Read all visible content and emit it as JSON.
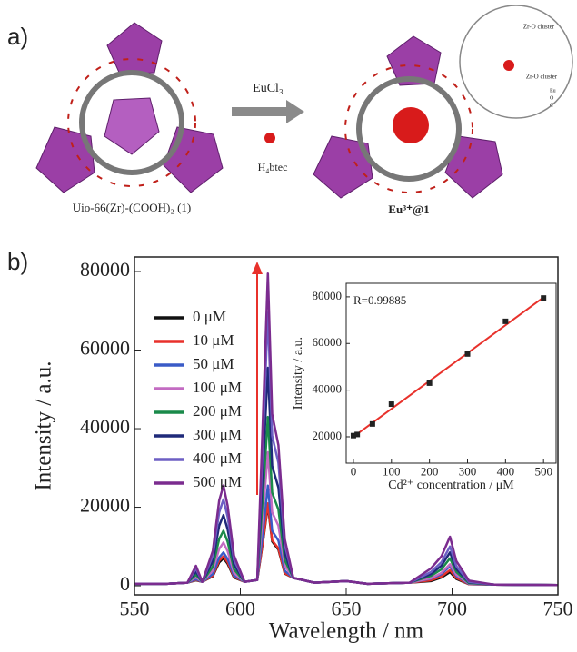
{
  "panel_a": {
    "label": "a)",
    "left_caption": "Uio-66(Zr)-(COOH)₂ (1)",
    "right_caption": "Eu³⁺@1",
    "reagent": "EuCl₃",
    "linker": "H₄btec",
    "zoom": {
      "cluster_top": "Zr-O cluster",
      "cluster_bottom": "Zr-O cluster",
      "key": [
        "Eu",
        "O",
        "C"
      ]
    }
  },
  "panel_b": {
    "label": "b)"
  },
  "chart_data": [
    {
      "type": "line",
      "xlabel": "Wavelength / nm",
      "ylabel": "Intensity / a.u.",
      "x": [
        550,
        565,
        575,
        579,
        582,
        587,
        590,
        592,
        594,
        597,
        602,
        608,
        611,
        613,
        615,
        618,
        621,
        625,
        635,
        650,
        660,
        680,
        690,
        695,
        699,
        702,
        708,
        720,
        750
      ],
      "xlim": [
        550,
        750
      ],
      "xticks": [
        550,
        600,
        650,
        700,
        750
      ],
      "ylim": [
        -2300,
        83700
      ],
      "yticks": [
        0,
        20000,
        40000,
        60000,
        80000
      ],
      "legend": "upper left",
      "series": [
        {
          "name": "0 μM",
          "color": "#111111",
          "values": [
            500,
            500,
            800,
            1400,
            1000,
            2450,
            5950,
            7000,
            5600,
            2100,
            1000,
            1500,
            12300,
            20500,
            11300,
            9200,
            3100,
            2000,
            800,
            1200,
            500,
            800,
            1200,
            2100,
            3500,
            1750,
            400,
            300,
            200
          ]
        },
        {
          "name": "10 μM",
          "color": "#e8312b",
          "values": [
            500,
            500,
            800,
            1500,
            1000,
            2600,
            6400,
            7500,
            6000,
            2300,
            1000,
            1500,
            12600,
            21000,
            11600,
            9500,
            3200,
            2000,
            800,
            1200,
            500,
            800,
            1400,
            2400,
            4000,
            2000,
            400,
            300,
            200
          ]
        },
        {
          "name": "50 μM",
          "color": "#3a5bc7",
          "values": [
            500,
            500,
            800,
            1700,
            1000,
            3000,
            7200,
            8500,
            6800,
            2600,
            1000,
            1500,
            15300,
            25500,
            14000,
            11500,
            3800,
            2000,
            800,
            1200,
            500,
            800,
            1800,
            3000,
            5000,
            2500,
            500,
            300,
            200
          ]
        },
        {
          "name": "100 μM",
          "color": "#c36bc2",
          "values": [
            500,
            500,
            800,
            2200,
            1000,
            3900,
            9400,
            11000,
            8800,
            3300,
            1000,
            1500,
            20400,
            34000,
            18700,
            15300,
            5100,
            2000,
            800,
            1200,
            500,
            800,
            1900,
            3300,
            5500,
            2800,
            600,
            300,
            200
          ]
        },
        {
          "name": "200 μM",
          "color": "#1a8a4a",
          "values": [
            500,
            500,
            800,
            2800,
            1000,
            4900,
            11900,
            14000,
            11200,
            4200,
            1000,
            1500,
            25800,
            43000,
            23700,
            19400,
            6500,
            2000,
            800,
            1200,
            500,
            800,
            2500,
            4200,
            7000,
            3500,
            700,
            300,
            200
          ]
        },
        {
          "name": "300 μM",
          "color": "#1f2a7a",
          "values": [
            500,
            500,
            800,
            3600,
            1000,
            6300,
            15300,
            18000,
            14400,
            5400,
            1000,
            1500,
            33300,
            55500,
            30500,
            25000,
            8300,
            2000,
            800,
            1200,
            500,
            800,
            3000,
            5100,
            8500,
            4300,
            900,
            300,
            200
          ]
        },
        {
          "name": "400 μM",
          "color": "#6d5fc4",
          "values": [
            500,
            500,
            800,
            4400,
            1000,
            7700,
            18700,
            22000,
            17600,
            6600,
            1000,
            1500,
            41700,
            69500,
            38200,
            31300,
            10400,
            2000,
            800,
            1200,
            500,
            800,
            3500,
            6000,
            10000,
            5000,
            1000,
            300,
            200
          ]
        },
        {
          "name": "500 μM",
          "color": "#7b2c8f",
          "values": [
            500,
            500,
            800,
            5100,
            1000,
            8900,
            21700,
            25500,
            20400,
            7700,
            1000,
            1500,
            47700,
            79500,
            43700,
            35800,
            11900,
            2000,
            800,
            1200,
            500,
            800,
            4400,
            7500,
            12500,
            6300,
            1300,
            300,
            200
          ]
        }
      ]
    },
    {
      "type": "scatter",
      "xlabel": "Cd²⁺ concentration / μM",
      "ylabel": "Intensity / a.u.",
      "annotation": "R=0.99885",
      "x": [
        0,
        10,
        50,
        100,
        200,
        300,
        400,
        500
      ],
      "xlim": [
        -19,
        533
      ],
      "xticks": [
        0,
        100,
        200,
        300,
        400,
        500
      ],
      "ylim": [
        8700,
        85800
      ],
      "yticks": [
        20000,
        40000,
        60000,
        80000
      ],
      "series": [
        {
          "color": "#222222",
          "values": [
            20500,
            21000,
            25500,
            34000,
            43000,
            55500,
            69500,
            79500
          ]
        }
      ],
      "fit": {
        "color": "#e8312b",
        "x": [
          0,
          500
        ],
        "values": [
          20000,
          79800
        ]
      }
    }
  ]
}
